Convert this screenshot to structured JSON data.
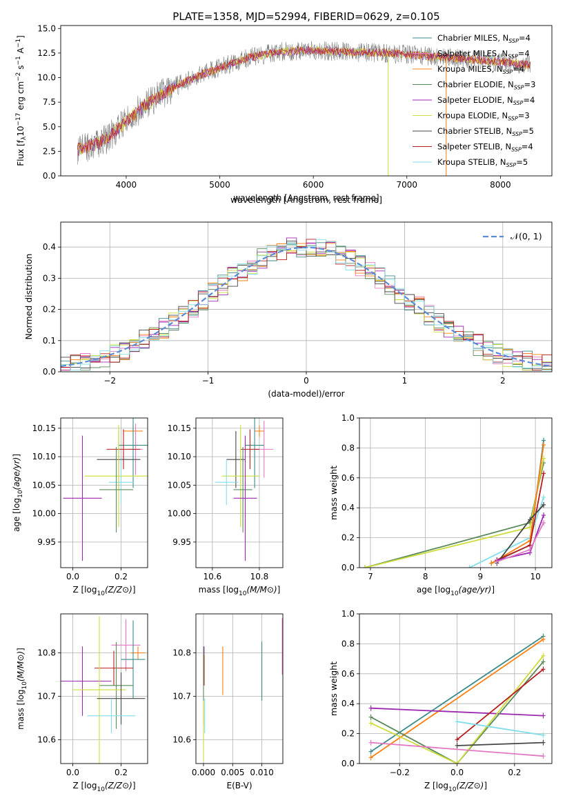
{
  "figure_title": "PLATE=1358, MJD=52994, FIBERID=0629, z=0.105",
  "legend_entries": [
    {
      "label": "Chabrier MILES, N",
      "sub": "SSP",
      "suffix": "=4",
      "color": "#3b8a8a"
    },
    {
      "label": "Salpeter MILES, N",
      "sub": "SSP",
      "suffix": "=4",
      "color": "#e377c2"
    },
    {
      "label": "Kroupa MILES, N",
      "sub": "SSP",
      "suffix": "=4",
      "color": "#ff7f0e"
    },
    {
      "label": "Chabrier ELODIE, N",
      "sub": "SSP",
      "suffix": "=3",
      "color": "#5a8a5a"
    },
    {
      "label": "Salpeter ELODIE, N",
      "sub": "SSP",
      "suffix": "=4",
      "color": "#9c27b0"
    },
    {
      "label": "Kroupa ELODIE, N",
      "sub": "SSP",
      "suffix": "=3",
      "color": "#cddc39"
    },
    {
      "label": "Chabrier STELIB, N",
      "sub": "SSP",
      "suffix": "=5",
      "color": "#444444"
    },
    {
      "label": "Salpeter STELIB, N",
      "sub": "SSP",
      "suffix": "=4",
      "color": "#b71c1c"
    },
    {
      "label": "Kroupa STELIB, N",
      "sub": "SSP",
      "suffix": "=5",
      "color": "#80deea"
    }
  ],
  "chart_data": [
    {
      "id": "spectrum",
      "type": "line",
      "title": "PLATE=1358, MJD=52994, FIBERID=0629, z=0.105",
      "xlabel": "wavelength [Angstrom, rest frame]",
      "ylabel": "Flux [f_λ 10^-17 erg cm^-2 s^-1 A^-1]",
      "xlim": [
        3300,
        8550
      ],
      "ylim": [
        0,
        15.3
      ],
      "xticks": [
        4000,
        5000,
        6000,
        7000,
        8000
      ],
      "yticks": [
        "0.0",
        "2.5",
        "5.0",
        "7.5",
        "10.0",
        "12.5",
        "15.0"
      ],
      "grid": false,
      "legend": "top-right",
      "continuum": {
        "x": [
          3480,
          3600,
          3800,
          4000,
          4200,
          4500,
          4800,
          5000,
          5300,
          5600,
          6000,
          6400,
          6800,
          7200,
          7600,
          8000,
          8320
        ],
        "y": [
          2.7,
          3.0,
          3.8,
          5.6,
          7.2,
          9.0,
          10.3,
          11.0,
          12.0,
          12.6,
          12.8,
          12.6,
          12.5,
          12.2,
          11.9,
          11.6,
          11.3
        ]
      }
    },
    {
      "id": "residuals",
      "type": "histogram",
      "xlabel": "(data-model)/error",
      "ylabel": "Normed distribution",
      "xlim": [
        -2.5,
        2.5
      ],
      "ylim": [
        0,
        0.48
      ],
      "xticks": [
        "−2",
        "−1",
        "0",
        "1",
        "2"
      ],
      "yticks": [
        "0.0",
        "0.1",
        "0.2",
        "0.3",
        "0.4"
      ],
      "grid": true,
      "legend": "top-right",
      "reference_label": "𝒩(0, 1)",
      "reference_color": "#5b8bd6"
    },
    {
      "id": "age_vs_Z",
      "type": "errorbar",
      "xlabel": "Z [log10(Z/Z⊙)]",
      "ylabel": "age  [log10(age/yr)]",
      "xlim": [
        -0.05,
        0.31
      ],
      "ylim": [
        9.905,
        10.168
      ],
      "xticks": [
        "0.0",
        "0.2"
      ],
      "yticks": [
        "9.95",
        "10.00",
        "10.05",
        "10.10",
        "10.15"
      ],
      "grid": true,
      "points": [
        {
          "series": "Kroupa MILES",
          "x": 0.25,
          "xerr": 0.04,
          "y": 10.145,
          "yerr": 0.01
        },
        {
          "series": "Salpeter MILES",
          "x": 0.26,
          "xerr": 0.03,
          "y": 10.113,
          "yerr": 0.045
        },
        {
          "series": "Chabrier MILES",
          "x": 0.25,
          "xerr": 0.06,
          "y": 10.12,
          "yerr": 0.075
        },
        {
          "series": "Salpeter STELIB",
          "x": 0.21,
          "xerr": 0.07,
          "y": 10.113,
          "yerr": 0.035
        },
        {
          "series": "Chabrier STELIB",
          "x": 0.19,
          "xerr": 0.09,
          "y": 10.095,
          "yerr": 0.05
        },
        {
          "series": "Kroupa ELODIE",
          "x": 0.19,
          "xerr": 0.14,
          "y": 10.066,
          "yerr": 0.09
        },
        {
          "series": "Kroupa STELIB",
          "x": 0.2,
          "xerr": 0.05,
          "y": 10.055,
          "yerr": 0.04
        },
        {
          "series": "Chabrier ELODIE",
          "x": 0.18,
          "xerr": 0.07,
          "y": 10.042,
          "yerr": 0.075
        },
        {
          "series": "Salpeter ELODIE",
          "x": 0.04,
          "xerr": 0.08,
          "y": 10.027,
          "yerr": 0.11
        }
      ]
    },
    {
      "id": "age_vs_mass",
      "type": "errorbar",
      "xlabel": "mass [log10(M/M⊙)]",
      "ylabel": "",
      "xlim": [
        10.53,
        10.9
      ],
      "ylim": [
        9.905,
        10.168
      ],
      "xticks": [
        "10.6",
        "10.8"
      ],
      "yticks": [
        "9.95",
        "10.00",
        "10.05",
        "10.10",
        "10.15"
      ],
      "grid": true,
      "points": [
        {
          "series": "Kroupa MILES",
          "x": 10.8,
          "xerr": 0.02,
          "y": 10.145,
          "yerr": 0.01
        },
        {
          "series": "Salpeter MILES",
          "x": 10.82,
          "xerr": 0.04,
          "y": 10.113,
          "yerr": 0.05
        },
        {
          "series": "Chabrier MILES",
          "x": 10.78,
          "xerr": 0.04,
          "y": 10.12,
          "yerr": 0.075
        },
        {
          "series": "Salpeter STELIB",
          "x": 10.76,
          "xerr": 0.04,
          "y": 10.113,
          "yerr": 0.035
        },
        {
          "series": "Chabrier STELIB",
          "x": 10.7,
          "xerr": 0.04,
          "y": 10.095,
          "yerr": 0.05
        },
        {
          "series": "Kroupa ELODIE",
          "x": 10.72,
          "xerr": 0.08,
          "y": 10.066,
          "yerr": 0.09
        },
        {
          "series": "Kroupa STELIB",
          "x": 10.66,
          "xerr": 0.05,
          "y": 10.055,
          "yerr": 0.04
        },
        {
          "series": "Chabrier ELODIE",
          "x": 10.73,
          "xerr": 0.04,
          "y": 10.042,
          "yerr": 0.075
        },
        {
          "series": "Salpeter ELODIE",
          "x": 10.74,
          "xerr": 0.05,
          "y": 10.027,
          "yerr": 0.11
        }
      ]
    },
    {
      "id": "weight_vs_age",
      "type": "line",
      "xlabel": "age  [log10(age/yr)]",
      "ylabel": "mass weight",
      "xlim": [
        6.8,
        10.3
      ],
      "ylim": [
        0,
        1
      ],
      "xticks": [
        "7",
        "8",
        "9",
        "10"
      ],
      "yticks": [
        "0.0",
        "0.2",
        "0.4",
        "0.6",
        "0.8",
        "1.0"
      ],
      "grid": true,
      "series": [
        {
          "name": "Chabrier ELODIE",
          "x": [
            6.9,
            9.9,
            10.15
          ],
          "y": [
            0.0,
            0.3,
            0.7
          ]
        },
        {
          "name": "Kroupa ELODIE",
          "x": [
            6.9,
            9.9,
            10.15
          ],
          "y": [
            0.0,
            0.27,
            0.73
          ]
        },
        {
          "name": "Kroupa STELIB",
          "x": [
            8.8,
            9.9,
            10.15
          ],
          "y": [
            0.0,
            0.2,
            0.47
          ]
        },
        {
          "name": "Chabrier MILES",
          "x": [
            9.2,
            9.9,
            10.15
          ],
          "y": [
            0.03,
            0.15,
            0.85
          ]
        },
        {
          "name": "Kroupa MILES",
          "x": [
            9.2,
            9.9,
            10.15
          ],
          "y": [
            0.03,
            0.18,
            0.82
          ]
        },
        {
          "name": "Salpeter STELIB",
          "x": [
            9.3,
            9.9,
            10.15
          ],
          "y": [
            0.05,
            0.15,
            0.63
          ]
        },
        {
          "name": "Chabrier STELIB",
          "x": [
            9.3,
            9.9,
            10.15
          ],
          "y": [
            0.03,
            0.32,
            0.42
          ]
        },
        {
          "name": "Salpeter ELODIE",
          "x": [
            9.3,
            9.9,
            10.15
          ],
          "y": [
            0.05,
            0.1,
            0.35
          ]
        },
        {
          "name": "Salpeter MILES",
          "x": [
            9.3,
            9.9,
            10.15
          ],
          "y": [
            0.04,
            0.12,
            0.3
          ]
        }
      ]
    },
    {
      "id": "mass_vs_Z",
      "type": "errorbar",
      "xlabel": "Z [log10(Z/Z⊙)]",
      "ylabel": "mass [log10(M/M⊙)]",
      "xlim": [
        -0.05,
        0.31
      ],
      "ylim": [
        10.545,
        10.89
      ],
      "xticks": [
        "0.0",
        "0.2"
      ],
      "yticks": [
        "10.6",
        "10.7",
        "10.8"
      ],
      "grid": true,
      "points": [
        {
          "series": "Salpeter MILES",
          "x": 0.22,
          "xerr": 0.06,
          "y": 10.818,
          "yerr": 0.06
        },
        {
          "series": "Kroupa MILES",
          "x": 0.27,
          "xerr": 0.03,
          "y": 10.8,
          "yerr": 0.015
        },
        {
          "series": "Chabrier MILES",
          "x": 0.25,
          "xerr": 0.05,
          "y": 10.785,
          "yerr": 0.09
        },
        {
          "series": "Salpeter STELIB",
          "x": 0.17,
          "xerr": 0.08,
          "y": 10.765,
          "yerr": 0.04
        },
        {
          "series": "Salpeter ELODIE",
          "x": 0.04,
          "xerr": 0.12,
          "y": 10.735,
          "yerr": 0.08
        },
        {
          "series": "Chabrier ELODIE",
          "x": 0.18,
          "xerr": 0.07,
          "y": 10.725,
          "yerr": 0.1
        },
        {
          "series": "Kroupa ELODIE",
          "x": 0.11,
          "xerr": 0.11,
          "y": 10.715,
          "yerr": 0.17
        },
        {
          "series": "Chabrier STELIB",
          "x": 0.2,
          "xerr": 0.1,
          "y": 10.695,
          "yerr": 0.06
        },
        {
          "series": "Kroupa STELIB",
          "x": 0.16,
          "xerr": 0.1,
          "y": 10.655,
          "yerr": 0.04
        }
      ]
    },
    {
      "id": "mass_vs_ebv",
      "type": "errorbar",
      "xlabel": "E(B-V)",
      "ylabel": "",
      "xlim": [
        -0.0013,
        0.0136
      ],
      "ylim": [
        10.545,
        10.89
      ],
      "xticks": [
        "0.000",
        "0.005",
        "0.010"
      ],
      "yticks": [
        "10.6",
        "10.7",
        "10.8"
      ],
      "grid": true,
      "points": [
        {
          "series": "Salpeter MILES",
          "x": 0.0135,
          "xerr": 0,
          "y": 10.815,
          "yerr": 0.065
        },
        {
          "series": "Chabrier MILES",
          "x": 0.01,
          "xerr": 0,
          "y": 10.758,
          "yerr": 0.068
        },
        {
          "series": "Kroupa MILES",
          "x": 0.0033,
          "xerr": 0,
          "y": 10.759,
          "yerr": 0.056
        },
        {
          "series": "Salpeter ELODIE",
          "x": 0.0001,
          "xerr": 0,
          "y": 10.77,
          "yerr": 0.045
        },
        {
          "series": "Salpeter STELIB",
          "x": 0.0001,
          "xerr": 0,
          "y": 10.76,
          "yerr": 0.035
        },
        {
          "series": "Chabrier ELODIE",
          "x": 0.0,
          "xerr": 0,
          "y": 10.725,
          "yerr": 0.09
        },
        {
          "series": "Kroupa STELIB",
          "x": 0.0002,
          "xerr": 0,
          "y": 10.655,
          "yerr": 0.04
        },
        {
          "series": "Kroupa ELODIE",
          "x": 0.0,
          "xerr": 0,
          "y": 10.62,
          "yerr": 0.07
        }
      ]
    },
    {
      "id": "weight_vs_Z",
      "type": "line",
      "xlabel": "Z [log10(Z/Z⊙)]",
      "ylabel": "mass weight",
      "xlim": [
        -0.34,
        0.33
      ],
      "ylim": [
        0,
        1
      ],
      "xticks": [
        "−0.2",
        "0.0",
        "0.2"
      ],
      "yticks": [
        "0.0",
        "0.2",
        "0.4",
        "0.6",
        "0.8",
        "1.0"
      ],
      "grid": true,
      "series": [
        {
          "name": "Chabrier MILES",
          "x": [
            -0.3,
            0.3
          ],
          "y": [
            0.08,
            0.85
          ]
        },
        {
          "name": "Kroupa MILES",
          "x": [
            -0.3,
            0.3
          ],
          "y": [
            0.04,
            0.83
          ]
        },
        {
          "name": "Salpeter ELODIE",
          "x": [
            -0.3,
            0.3
          ],
          "y": [
            0.37,
            0.32
          ]
        },
        {
          "name": "Chabrier ELODIE",
          "x": [
            -0.3,
            0.0,
            0.3
          ],
          "y": [
            0.31,
            0.0,
            0.68
          ]
        },
        {
          "name": "Kroupa ELODIE",
          "x": [
            -0.3,
            0.0,
            0.3
          ],
          "y": [
            0.27,
            0.0,
            0.72
          ]
        },
        {
          "name": "Salpeter MILES",
          "x": [
            -0.3,
            0.3
          ],
          "y": [
            0.14,
            0.05
          ]
        },
        {
          "name": "Salpeter STELIB",
          "x": [
            0.0,
            0.3
          ],
          "y": [
            0.16,
            0.63
          ]
        },
        {
          "name": "Chabrier STELIB",
          "x": [
            0.0,
            0.3
          ],
          "y": [
            0.12,
            0.14
          ]
        },
        {
          "name": "Kroupa STELIB",
          "x": [
            0.0,
            0.3
          ],
          "y": [
            0.28,
            0.19
          ]
        }
      ]
    }
  ]
}
